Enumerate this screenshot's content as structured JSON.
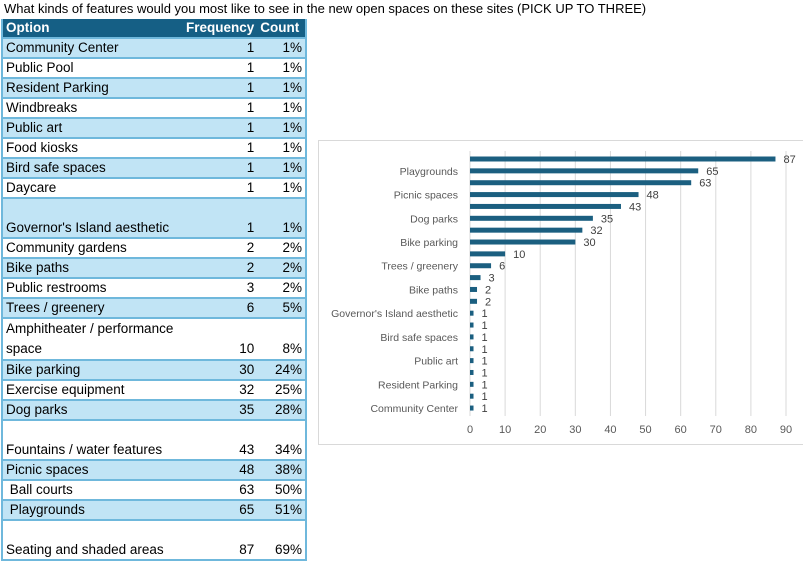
{
  "title": "What kinds of features would you most like to see in the new open spaces on these sites (PICK UP TO THREE)",
  "table": {
    "headers": [
      "Option",
      "Frequency",
      "Count"
    ],
    "rows": [
      {
        "option": "Community Center",
        "frequency": "1",
        "count": "1%"
      },
      {
        "option": "Public Pool",
        "frequency": "1",
        "count": "1%"
      },
      {
        "option": "Resident Parking",
        "frequency": "1",
        "count": "1%"
      },
      {
        "option": "Windbreaks",
        "frequency": "1",
        "count": "1%"
      },
      {
        "option": "Public art",
        "frequency": "1",
        "count": "1%"
      },
      {
        "option": "Food kiosks",
        "frequency": "1",
        "count": "1%"
      },
      {
        "option": "Bird safe spaces",
        "frequency": "1",
        "count": "1%"
      },
      {
        "option": "Daycare",
        "frequency": "1",
        "count": "1%"
      },
      {
        "option": "Governor's Island aesthetic",
        "frequency": "1",
        "count": "1%"
      },
      {
        "option": "Community gardens",
        "frequency": "2",
        "count": "2%"
      },
      {
        "option": "Bike paths",
        "frequency": "2",
        "count": "2%"
      },
      {
        "option": "Public restrooms",
        "frequency": "3",
        "count": "2%"
      },
      {
        "option": "Trees / greenery",
        "frequency": "6",
        "count": "5%"
      },
      {
        "option": "Amphitheater / performance space",
        "frequency": "10",
        "count": "8%"
      },
      {
        "option": "Bike parking",
        "frequency": "30",
        "count": "24%"
      },
      {
        "option": "Exercise equipment",
        "frequency": "32",
        "count": "25%"
      },
      {
        "option": "Dog parks",
        "frequency": "35",
        "count": "28%"
      },
      {
        "option": "Fountains / water features",
        "frequency": "43",
        "count": "34%"
      },
      {
        "option": "Picnic spaces",
        "frequency": "48",
        "count": "38%"
      },
      {
        "option": " Ball courts",
        "frequency": "63",
        "count": "50%"
      },
      {
        "option": " Playgrounds",
        "frequency": "65",
        "count": "51%"
      },
      {
        "option": "Seating and shaded areas",
        "frequency": "87",
        "count": "69%"
      }
    ]
  },
  "chart_data": {
    "type": "bar",
    "orientation": "horizontal",
    "categories": [
      "Community Center",
      "Public Pool",
      "Resident Parking",
      "Windbreaks",
      "Public art",
      "Food kiosks",
      "Bird safe spaces",
      "Daycare",
      "Governor's Island aesthetic",
      "Community gardens",
      "Bike paths",
      "Public restrooms",
      "Trees / greenery",
      "Amphitheater / performance space",
      "Bike parking",
      "Exercise equipment",
      "Dog parks",
      "Fountains / water features",
      "Picnic spaces",
      "Ball courts",
      "Playgrounds",
      "Seating and shaded areas"
    ],
    "visible_category_labels": [
      "Community Center",
      "Resident Parking",
      "Public art",
      "Bird safe spaces",
      "Governor's Island aesthetic",
      "Bike paths",
      "Trees / greenery",
      "Bike parking",
      "Dog parks",
      "Picnic spaces",
      "Playgrounds"
    ],
    "values": [
      1,
      1,
      1,
      1,
      1,
      1,
      1,
      1,
      1,
      2,
      2,
      3,
      6,
      10,
      30,
      32,
      35,
      43,
      48,
      63,
      65,
      87
    ],
    "xlim": [
      0,
      90
    ],
    "xticks": [
      0,
      10,
      20,
      30,
      40,
      50,
      60,
      70,
      80,
      90
    ],
    "grid": true,
    "bar_color": "#1b5f80",
    "title": "",
    "xlabel": "",
    "ylabel": ""
  },
  "colors": {
    "header": "#155f85",
    "band": "#c1e4f5",
    "border": "#6fb8dc"
  }
}
